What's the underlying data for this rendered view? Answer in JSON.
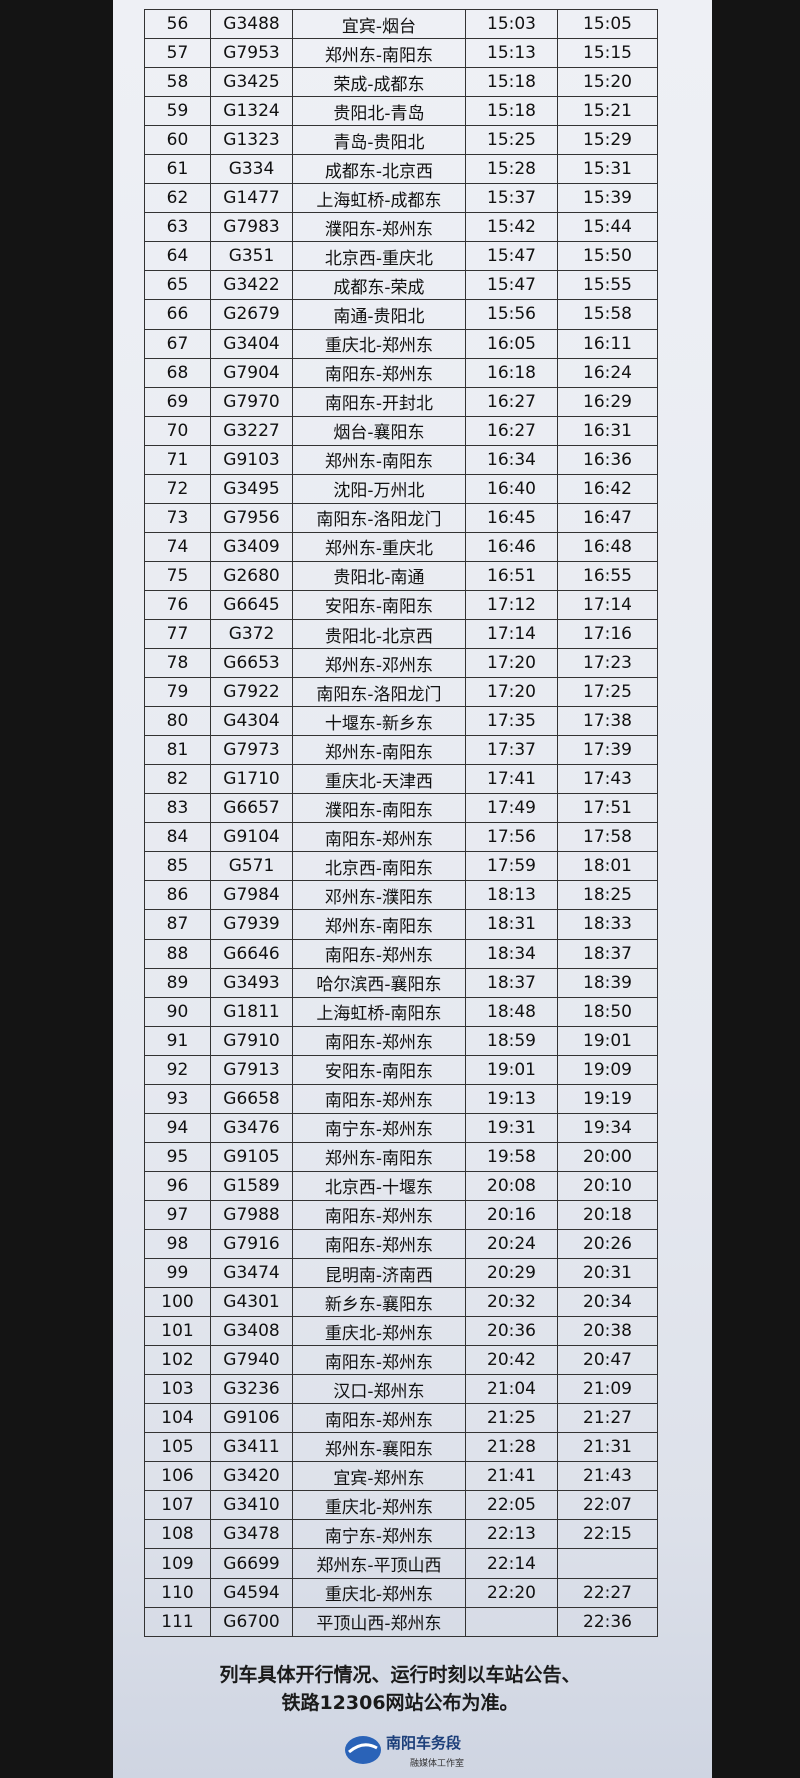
{
  "table": {
    "rows": [
      [
        56,
        "G3488",
        "宜宾-烟台",
        "15:03",
        "15:05"
      ],
      [
        57,
        "G7953",
        "郑州东-南阳东",
        "15:13",
        "15:15"
      ],
      [
        58,
        "G3425",
        "荣成-成都东",
        "15:18",
        "15:20"
      ],
      [
        59,
        "G1324",
        "贵阳北-青岛",
        "15:18",
        "15:21"
      ],
      [
        60,
        "G1323",
        "青岛-贵阳北",
        "15:25",
        "15:29"
      ],
      [
        61,
        "G334",
        "成都东-北京西",
        "15:28",
        "15:31"
      ],
      [
        62,
        "G1477",
        "上海虹桥-成都东",
        "15:37",
        "15:39"
      ],
      [
        63,
        "G7983",
        "濮阳东-郑州东",
        "15:42",
        "15:44"
      ],
      [
        64,
        "G351",
        "北京西-重庆北",
        "15:47",
        "15:50"
      ],
      [
        65,
        "G3422",
        "成都东-荣成",
        "15:47",
        "15:55"
      ],
      [
        66,
        "G2679",
        "南通-贵阳北",
        "15:56",
        "15:58"
      ],
      [
        67,
        "G3404",
        "重庆北-郑州东",
        "16:05",
        "16:11"
      ],
      [
        68,
        "G7904",
        "南阳东-郑州东",
        "16:18",
        "16:24"
      ],
      [
        69,
        "G7970",
        "南阳东-开封北",
        "16:27",
        "16:29"
      ],
      [
        70,
        "G3227",
        "烟台-襄阳东",
        "16:27",
        "16:31"
      ],
      [
        71,
        "G9103",
        "郑州东-南阳东",
        "16:34",
        "16:36"
      ],
      [
        72,
        "G3495",
        "沈阳-万州北",
        "16:40",
        "16:42"
      ],
      [
        73,
        "G7956",
        "南阳东-洛阳龙门",
        "16:45",
        "16:47"
      ],
      [
        74,
        "G3409",
        "郑州东-重庆北",
        "16:46",
        "16:48"
      ],
      [
        75,
        "G2680",
        "贵阳北-南通",
        "16:51",
        "16:55"
      ],
      [
        76,
        "G6645",
        "安阳东-南阳东",
        "17:12",
        "17:14"
      ],
      [
        77,
        "G372",
        "贵阳北-北京西",
        "17:14",
        "17:16"
      ],
      [
        78,
        "G6653",
        "郑州东-邓州东",
        "17:20",
        "17:23"
      ],
      [
        79,
        "G7922",
        "南阳东-洛阳龙门",
        "17:20",
        "17:25"
      ],
      [
        80,
        "G4304",
        "十堰东-新乡东",
        "17:35",
        "17:38"
      ],
      [
        81,
        "G7973",
        "郑州东-南阳东",
        "17:37",
        "17:39"
      ],
      [
        82,
        "G1710",
        "重庆北-天津西",
        "17:41",
        "17:43"
      ],
      [
        83,
        "G6657",
        "濮阳东-南阳东",
        "17:49",
        "17:51"
      ],
      [
        84,
        "G9104",
        "南阳东-郑州东",
        "17:56",
        "17:58"
      ],
      [
        85,
        "G571",
        "北京西-南阳东",
        "17:59",
        "18:01"
      ],
      [
        86,
        "G7984",
        "邓州东-濮阳东",
        "18:13",
        "18:25"
      ],
      [
        87,
        "G7939",
        "郑州东-南阳东",
        "18:31",
        "18:33"
      ],
      [
        88,
        "G6646",
        "南阳东-郑州东",
        "18:34",
        "18:37"
      ],
      [
        89,
        "G3493",
        "哈尔滨西-襄阳东",
        "18:37",
        "18:39"
      ],
      [
        90,
        "G1811",
        "上海虹桥-南阳东",
        "18:48",
        "18:50"
      ],
      [
        91,
        "G7910",
        "南阳东-郑州东",
        "18:59",
        "19:01"
      ],
      [
        92,
        "G7913",
        "安阳东-南阳东",
        "19:01",
        "19:09"
      ],
      [
        93,
        "G6658",
        "南阳东-郑州东",
        "19:13",
        "19:19"
      ],
      [
        94,
        "G3476",
        "南宁东-郑州东",
        "19:31",
        "19:34"
      ],
      [
        95,
        "G9105",
        "郑州东-南阳东",
        "19:58",
        "20:00"
      ],
      [
        96,
        "G1589",
        "北京西-十堰东",
        "20:08",
        "20:10"
      ],
      [
        97,
        "G7988",
        "南阳东-郑州东",
        "20:16",
        "20:18"
      ],
      [
        98,
        "G7916",
        "南阳东-郑州东",
        "20:24",
        "20:26"
      ],
      [
        99,
        "G3474",
        "昆明南-济南西",
        "20:29",
        "20:31"
      ],
      [
        100,
        "G4301",
        "新乡东-襄阳东",
        "20:32",
        "20:34"
      ],
      [
        101,
        "G3408",
        "重庆北-郑州东",
        "20:36",
        "20:38"
      ],
      [
        102,
        "G7940",
        "南阳东-郑州东",
        "20:42",
        "20:47"
      ],
      [
        103,
        "G3236",
        "汉口-郑州东",
        "21:04",
        "21:09"
      ],
      [
        104,
        "G9106",
        "南阳东-郑州东",
        "21:25",
        "21:27"
      ],
      [
        105,
        "G3411",
        "郑州东-襄阳东",
        "21:28",
        "21:31"
      ],
      [
        106,
        "G3420",
        "宜宾-郑州东",
        "21:41",
        "21:43"
      ],
      [
        107,
        "G3410",
        "重庆北-郑州东",
        "22:05",
        "22:07"
      ],
      [
        108,
        "G3478",
        "南宁东-郑州东",
        "22:13",
        "22:15"
      ],
      [
        109,
        "G6699",
        "郑州东-平顶山西",
        "22:14",
        null
      ],
      [
        110,
        "G4594",
        "重庆北-郑州东",
        "22:20",
        "22:27"
      ],
      [
        111,
        "G6700",
        "平顶山西-郑州东",
        null,
        "22:36"
      ]
    ]
  },
  "footer": {
    "lines": [
      "列车具体开行情况、运行时刻以车站公告、",
      "铁路12306网站公布为准。"
    ],
    "logo": {
      "name": "南阳车务段",
      "subtitle": "融媒体工作室"
    }
  }
}
